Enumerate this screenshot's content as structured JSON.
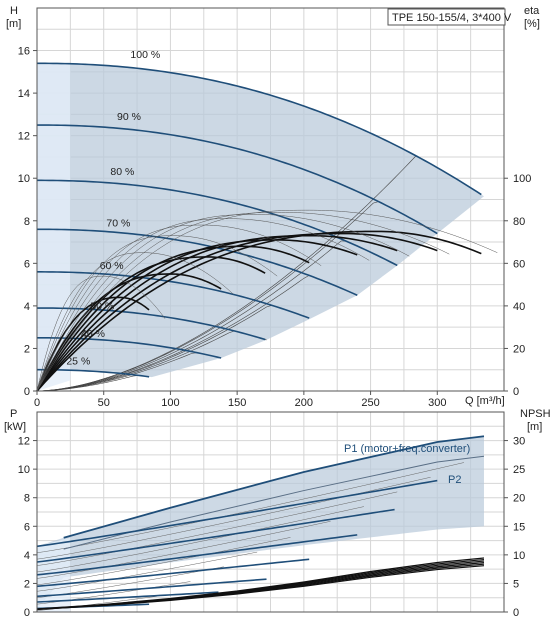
{
  "chart_data": [
    {
      "type": "line",
      "title": "TPE 150-155/4, 3*400 V",
      "ylabel_left": [
        "H",
        "[m]"
      ],
      "ylabel_right": [
        "eta",
        "[%]"
      ],
      "xlabel": "Q [m³/h]",
      "xlim": [
        0,
        350
      ],
      "ylim": [
        0,
        18
      ],
      "ylim_right": [
        0,
        180
      ],
      "xticks": [
        0,
        50,
        100,
        150,
        200,
        250,
        300
      ],
      "yticks": [
        0,
        2,
        4,
        6,
        8,
        10,
        12,
        14,
        16
      ],
      "yticks_right": [
        0,
        20,
        40,
        60,
        80,
        100
      ],
      "grid": true,
      "operating_range_color": "#b8c9da",
      "curve_color": "#1f4e79",
      "speed_labels": [
        "100 %",
        "90 %",
        "80 %",
        "70 %",
        "60 %",
        "50 %",
        "40 %",
        "25 %"
      ],
      "head_curves": [
        {
          "speed": 1.0,
          "label": "100 %",
          "h0": 15.4,
          "qmax": 335,
          "drop": 6.25
        },
        {
          "speed": 0.9,
          "label": "90 %",
          "h0": 12.5,
          "qmax": 300,
          "drop": 5.1
        },
        {
          "speed": 0.8,
          "label": "80 %",
          "h0": 9.9,
          "qmax": 270,
          "drop": 4.0
        },
        {
          "speed": 0.7,
          "label": "70 %",
          "h0": 7.6,
          "qmax": 240,
          "drop": 3.1
        },
        {
          "speed": 0.6,
          "label": "60 %",
          "h0": 5.6,
          "qmax": 205,
          "drop": 2.2
        },
        {
          "speed": 0.5,
          "label": "50 %",
          "h0": 3.9,
          "qmax": 172,
          "drop": 1.5
        },
        {
          "speed": 0.4,
          "label": "40 %",
          "h0": 2.5,
          "qmax": 138,
          "drop": 0.95
        },
        {
          "speed": 0.25,
          "label": "25 %",
          "h0": 1.0,
          "qmax": 86,
          "drop": 0.35
        }
      ],
      "eta_curves": [
        {
          "qmax": 335,
          "eta_peak": 75,
          "q_peak": 255,
          "eta_end": 64
        },
        {
          "qmax": 300,
          "eta_peak": 74,
          "q_peak": 230,
          "eta_end": 66
        },
        {
          "qmax": 270,
          "eta_peak": 73,
          "q_peak": 205,
          "eta_end": 66
        },
        {
          "qmax": 240,
          "eta_peak": 71,
          "q_peak": 180,
          "eta_end": 64
        },
        {
          "qmax": 205,
          "eta_peak": 68,
          "q_peak": 155,
          "eta_end": 60
        },
        {
          "qmax": 172,
          "eta_peak": 63,
          "q_peak": 128,
          "eta_end": 55
        },
        {
          "qmax": 138,
          "eta_peak": 55,
          "q_peak": 100,
          "eta_end": 48
        },
        {
          "qmax": 86,
          "eta_peak": 44,
          "q_peak": 62,
          "eta_end": 37
        }
      ]
    },
    {
      "type": "line",
      "ylabel_left": [
        "P",
        "[kW]"
      ],
      "ylabel_right": [
        "NPSH",
        "[m]"
      ],
      "xlim": [
        0,
        350
      ],
      "ylim": [
        0,
        14
      ],
      "ylim_right": [
        0,
        35
      ],
      "yticks": [
        0,
        2,
        4,
        6,
        8,
        10,
        12
      ],
      "yticks_right": [
        0,
        5,
        10,
        15,
        20,
        25,
        30
      ],
      "grid": true,
      "series": [
        {
          "name": "P1 (motor+freq.converter)",
          "x": [
            20,
            100,
            200,
            300,
            335
          ],
          "y": [
            5.2,
            7.3,
            9.8,
            11.9,
            12.3
          ]
        },
        {
          "name": "P2",
          "x": [
            20,
            100,
            200,
            300,
            335
          ],
          "y": [
            4.4,
            6.3,
            8.5,
            10.5,
            10.9
          ]
        }
      ],
      "power_curves": [
        {
          "qmax": 300,
          "p_start": 4.6,
          "p_end": 9.2
        },
        {
          "qmax": 270,
          "p_start": 3.5,
          "p_end": 7.2
        },
        {
          "qmax": 240,
          "p_start": 2.6,
          "p_end": 5.4
        },
        {
          "qmax": 205,
          "p_start": 1.8,
          "p_end": 3.7
        },
        {
          "qmax": 172,
          "p_start": 1.1,
          "p_end": 2.3
        },
        {
          "qmax": 138,
          "p_start": 0.7,
          "p_end": 1.4
        },
        {
          "qmax": 86,
          "p_start": 0.25,
          "p_end": 0.55
        }
      ],
      "npsh_curve": {
        "x": [
          0,
          50,
          100,
          150,
          200,
          250,
          300,
          335
        ],
        "y": [
          0.2,
          0.5,
          0.9,
          1.4,
          2.0,
          2.7,
          3.3,
          3.6
        ]
      }
    }
  ]
}
